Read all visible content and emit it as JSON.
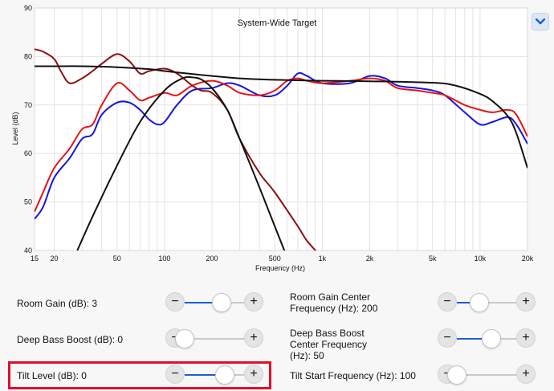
{
  "chart_data": {
    "type": "line",
    "title": "System-Wide Target",
    "xlabel": "Frequency (Hz)",
    "ylabel": "Level (dB)",
    "xscale": "log",
    "xlim": [
      15,
      20000
    ],
    "ylim": [
      40,
      90
    ],
    "grid": true,
    "x_ticks": [
      15,
      20,
      50,
      100,
      200,
      500,
      1000,
      2000,
      5000,
      10000,
      20000
    ],
    "x_tick_labels": [
      "15",
      "20",
      "50",
      "100",
      "200",
      "500",
      "1k",
      "2k",
      "5k",
      "10k",
      "20k"
    ],
    "y_ticks": [
      40,
      50,
      60,
      70,
      80,
      90
    ],
    "y_tick_labels": [
      "40",
      "50",
      "60",
      "70",
      "80",
      "90"
    ],
    "series": [
      {
        "color": "#1515e0",
        "points": [
          [
            15,
            46.5
          ],
          [
            17,
            49
          ],
          [
            20,
            55
          ],
          [
            25,
            59
          ],
          [
            30,
            63
          ],
          [
            35,
            64
          ],
          [
            40,
            68
          ],
          [
            50,
            70.5
          ],
          [
            60,
            70.5
          ],
          [
            70,
            69
          ],
          [
            80,
            67
          ],
          [
            90,
            66
          ],
          [
            100,
            66.5
          ],
          [
            120,
            70
          ],
          [
            150,
            73
          ],
          [
            200,
            73.5
          ],
          [
            250,
            74.5
          ],
          [
            300,
            74
          ],
          [
            400,
            72
          ],
          [
            500,
            72
          ],
          [
            600,
            74
          ],
          [
            700,
            76.5
          ],
          [
            800,
            76
          ],
          [
            1000,
            74.5
          ],
          [
            1500,
            74.5
          ],
          [
            2000,
            76
          ],
          [
            2500,
            75.5
          ],
          [
            3000,
            74
          ],
          [
            4000,
            73.5
          ],
          [
            5000,
            73
          ],
          [
            6000,
            72
          ],
          [
            8000,
            68.5
          ],
          [
            10000,
            66
          ],
          [
            12000,
            66.5
          ],
          [
            15000,
            67.5
          ],
          [
            17000,
            66
          ],
          [
            20000,
            62
          ]
        ]
      },
      {
        "color": "#e51414",
        "points": [
          [
            15,
            48
          ],
          [
            17,
            52
          ],
          [
            20,
            57
          ],
          [
            25,
            61
          ],
          [
            30,
            65
          ],
          [
            35,
            66
          ],
          [
            40,
            70
          ],
          [
            50,
            74.5
          ],
          [
            60,
            73
          ],
          [
            70,
            71
          ],
          [
            80,
            71.5
          ],
          [
            100,
            72.5
          ],
          [
            120,
            72
          ],
          [
            150,
            74
          ],
          [
            200,
            75
          ],
          [
            250,
            74
          ],
          [
            300,
            72.5
          ],
          [
            400,
            72
          ],
          [
            500,
            73
          ],
          [
            600,
            75
          ],
          [
            700,
            75.5
          ],
          [
            800,
            75
          ],
          [
            1000,
            74.5
          ],
          [
            1500,
            75
          ],
          [
            2000,
            75.5
          ],
          [
            2500,
            75
          ],
          [
            3000,
            73.5
          ],
          [
            4000,
            73
          ],
          [
            5000,
            72.5
          ],
          [
            6000,
            72
          ],
          [
            8000,
            70
          ],
          [
            10000,
            69
          ],
          [
            12000,
            68.5
          ],
          [
            15000,
            69
          ],
          [
            17000,
            68
          ],
          [
            20000,
            63.5
          ]
        ]
      },
      {
        "color": "#8b1010",
        "points": [
          [
            15,
            81.5
          ],
          [
            17,
            81
          ],
          [
            20,
            79.5
          ],
          [
            22,
            77
          ],
          [
            25,
            74.5
          ],
          [
            30,
            75.5
          ],
          [
            35,
            77
          ],
          [
            40,
            78.5
          ],
          [
            50,
            80.5
          ],
          [
            60,
            79
          ],
          [
            70,
            76.5
          ],
          [
            80,
            77
          ],
          [
            100,
            77.5
          ],
          [
            120,
            76.5
          ],
          [
            150,
            74
          ],
          [
            170,
            73
          ],
          [
            200,
            72.5
          ],
          [
            250,
            69
          ],
          [
            300,
            63
          ],
          [
            400,
            56
          ],
          [
            500,
            52
          ],
          [
            700,
            45
          ],
          [
            800,
            42
          ],
          [
            1000,
            38.5
          ]
        ]
      },
      {
        "color": "#111111",
        "points": [
          [
            15,
            78
          ],
          [
            20,
            78
          ],
          [
            30,
            78
          ],
          [
            50,
            77.8
          ],
          [
            80,
            77.4
          ],
          [
            100,
            77
          ],
          [
            150,
            76.4
          ],
          [
            200,
            76
          ],
          [
            300,
            75.5
          ],
          [
            500,
            75.2
          ],
          [
            1000,
            75
          ],
          [
            2000,
            74.9
          ],
          [
            5000,
            74.6
          ],
          [
            7000,
            74
          ],
          [
            10000,
            72.3
          ],
          [
            12000,
            70.8
          ],
          [
            15000,
            67.7
          ],
          [
            17000,
            64.2
          ],
          [
            20000,
            57
          ]
        ]
      },
      {
        "color": "#111111",
        "points": [
          [
            28,
            40
          ],
          [
            35,
            47
          ],
          [
            50,
            57.5
          ],
          [
            70,
            66.5
          ],
          [
            100,
            73
          ],
          [
            130,
            75.5
          ],
          [
            150,
            75.7
          ],
          [
            170,
            75.3
          ],
          [
            200,
            73.5
          ],
          [
            250,
            69
          ],
          [
            300,
            63
          ],
          [
            400,
            53
          ],
          [
            500,
            45
          ],
          [
            600,
            38.5
          ]
        ]
      }
    ]
  },
  "controls": {
    "room_gain": {
      "label": "Room Gain (dB): 3",
      "value": 3,
      "fraction": 0.62
    },
    "deep_bass": {
      "label": "Deep Bass Boost (dB): 0",
      "value": 0,
      "fraction": 0.0
    },
    "tilt_level": {
      "label": "Tilt Level (dB): 0",
      "value": 0,
      "fraction": 0.68
    },
    "room_gain_center": {
      "label": "Room Gain Center Frequency (Hz): 200",
      "value": 200,
      "fraction": 0.38
    },
    "deep_bass_center": {
      "label": "Deep Bass Boost Center Frequency (Hz): 50",
      "value": 50,
      "fraction": 0.58
    },
    "tilt_start": {
      "label": "Tilt Start Frequency (Hz): 100",
      "value": 100,
      "fraction": 0.0
    }
  },
  "buttons": {
    "minus": "−",
    "plus": "+",
    "collapse_icon": "chevron-down-icon"
  },
  "colors": {
    "accent": "#1a5fd1",
    "highlight": "#e0102a"
  }
}
